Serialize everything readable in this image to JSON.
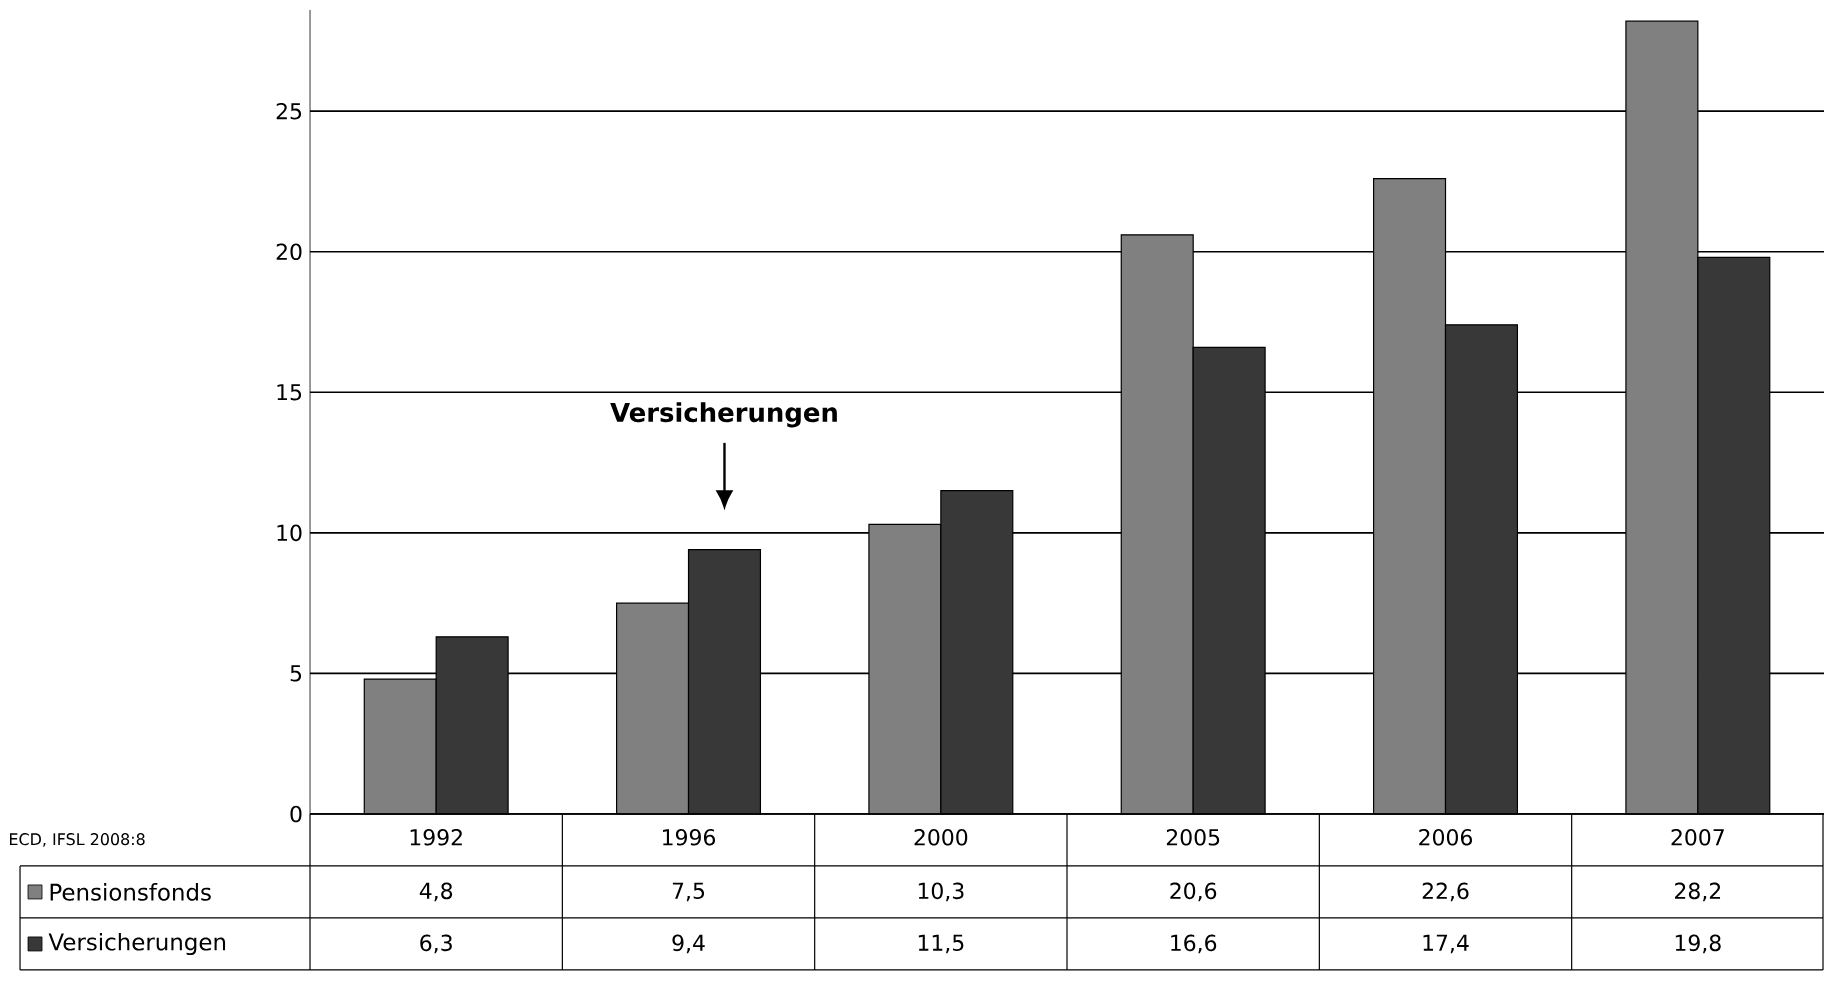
{
  "chart_data": {
    "type": "bar",
    "categories": [
      "1992",
      "1996",
      "2000",
      "2005",
      "2006",
      "2007"
    ],
    "series": [
      {
        "name": "Pensionsfonds",
        "color": "#808080",
        "values": [
          4.8,
          7.5,
          10.3,
          20.6,
          22.6,
          28.2
        ],
        "value_labels": [
          "4,8",
          "7,5",
          "10,3",
          "20,6",
          "22,6",
          "28,2"
        ]
      },
      {
        "name": "Versicherungen",
        "color": "#383838",
        "values": [
          6.3,
          9.4,
          11.5,
          16.6,
          17.4,
          19.8
        ],
        "value_labels": [
          "6,3",
          "9,4",
          "11,5",
          "16,6",
          "17,4",
          "19,8"
        ]
      }
    ],
    "ylim": [
      0,
      28.6
    ],
    "yticks": [
      0,
      5,
      10,
      15,
      20,
      25
    ],
    "grid": "y",
    "legend": "bottom",
    "annotations": [
      "Versicherungen",
      "ECD, IFSL 2008:8"
    ]
  }
}
